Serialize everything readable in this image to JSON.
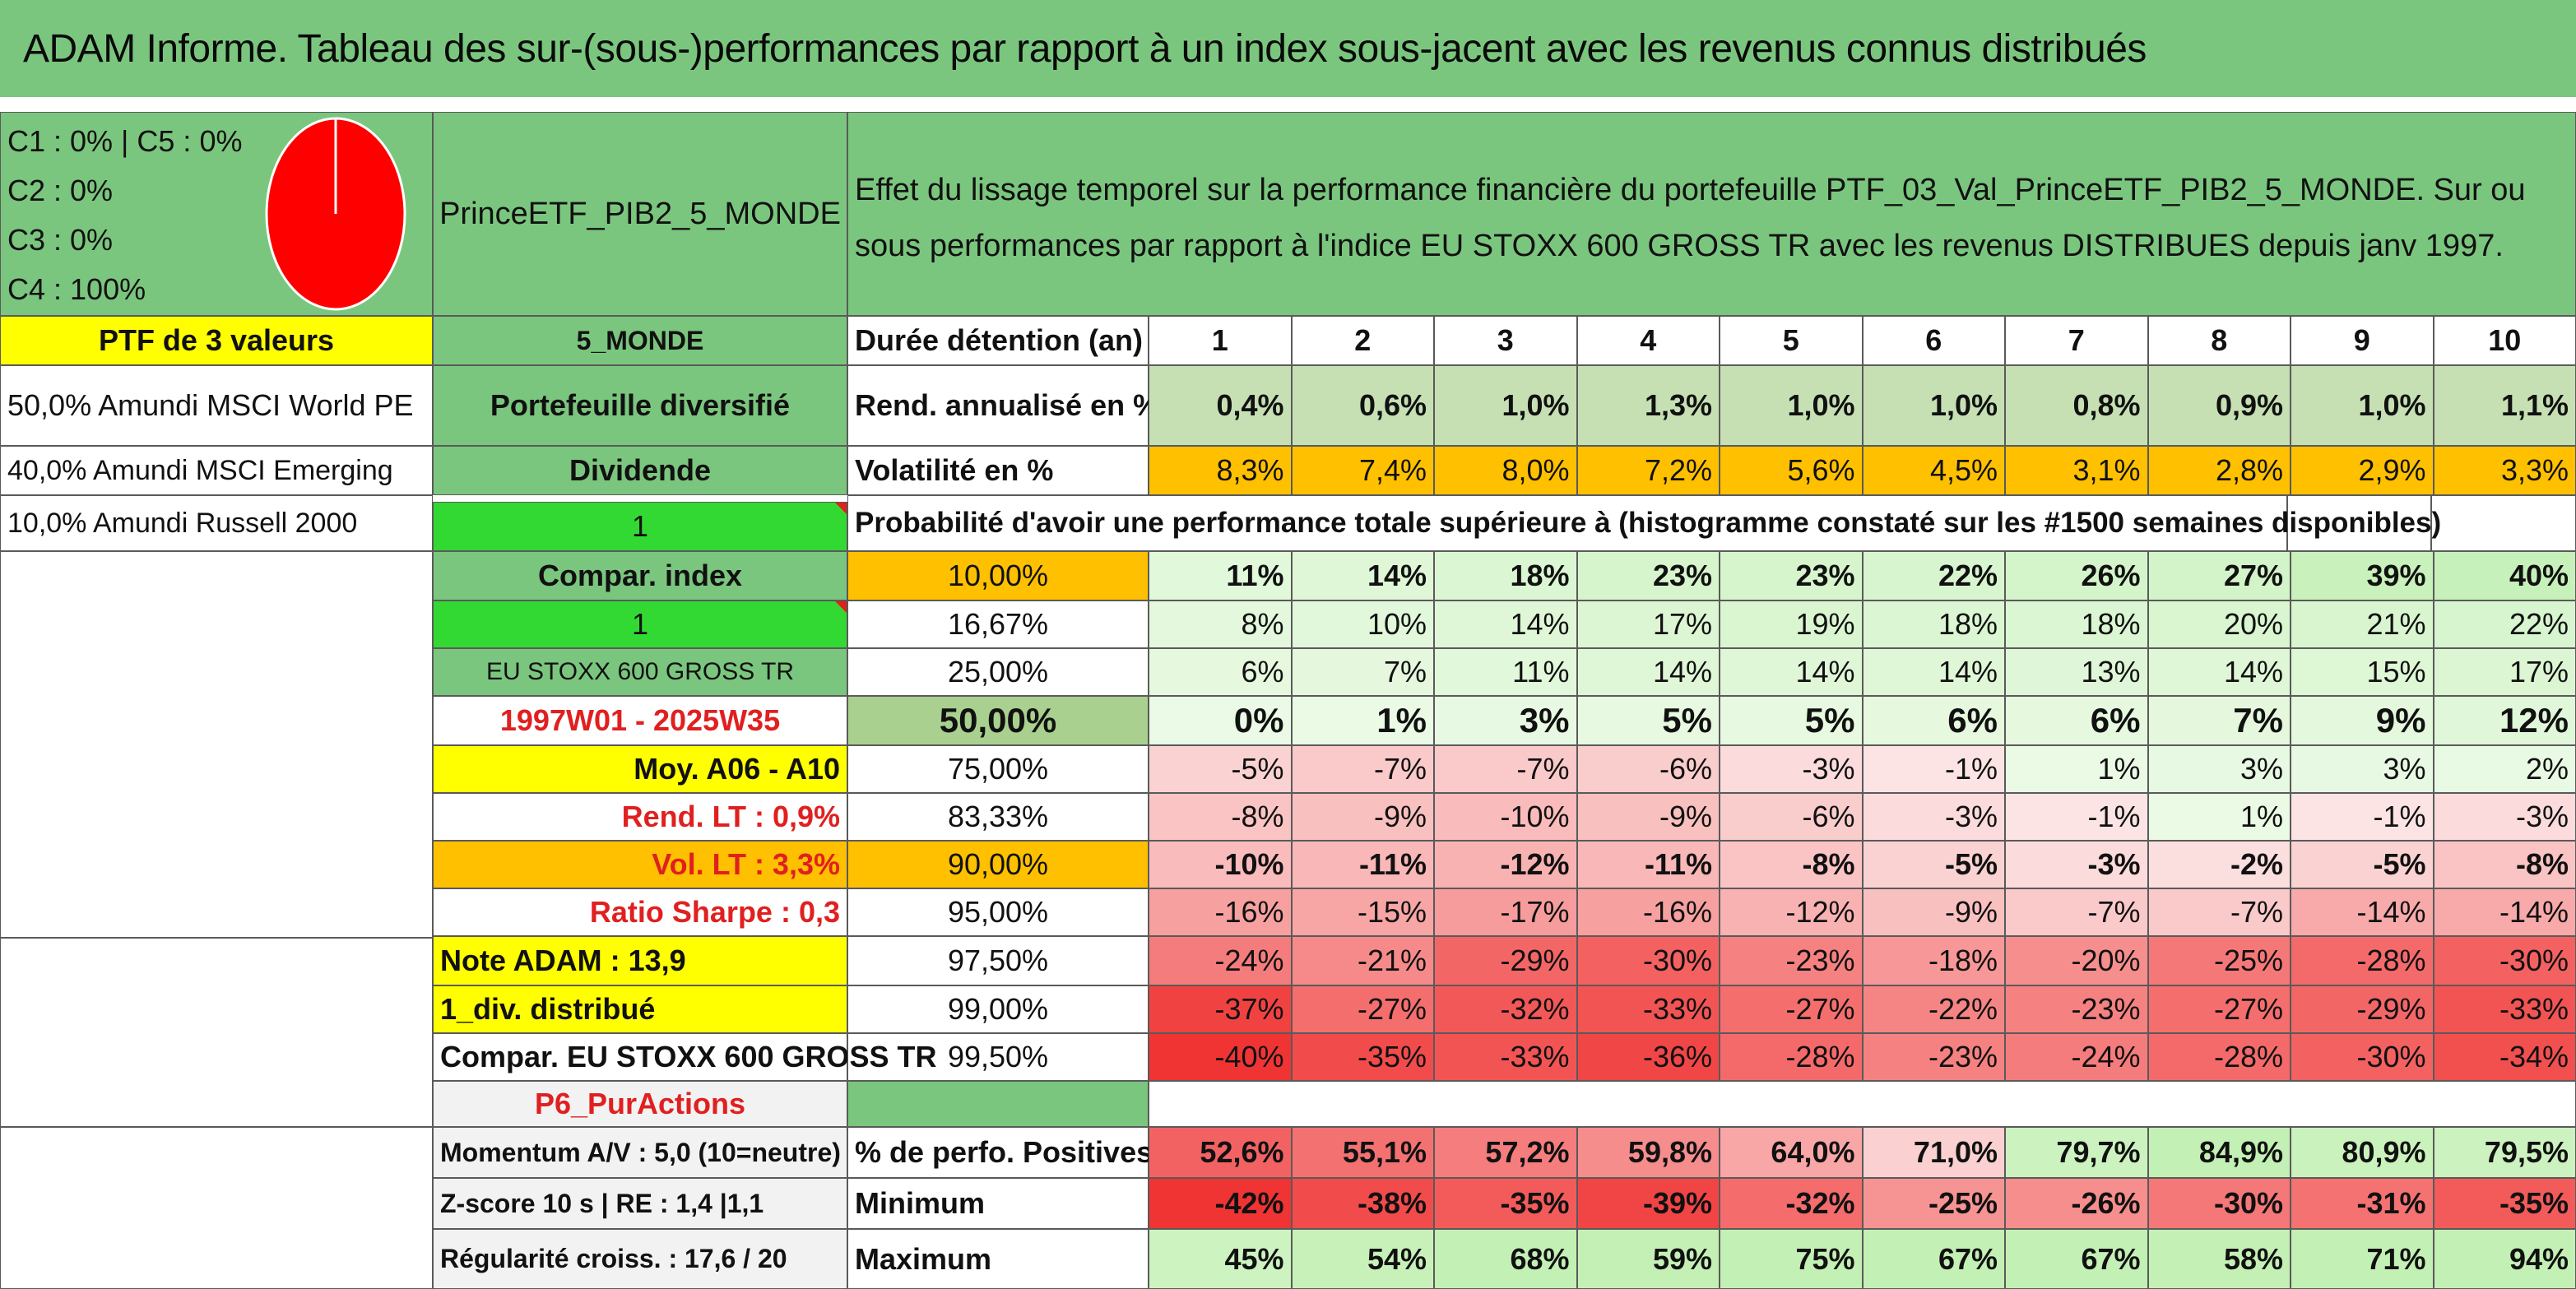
{
  "title": "ADAM Informe. Tableau des sur-(sous-)performances par rapport à un index sous-jacent avec les revenus connus distribués",
  "categories": {
    "c1": "C1 : 0% | C5 : 0%",
    "c2": "C2 : 0%",
    "c3": "C3 : 0%",
    "c4": "C4 : 100%"
  },
  "pie_chart": {
    "C1": 0,
    "C2": 0,
    "C3": 0,
    "C4": 100,
    "C5": 0,
    "color": "#ff0000"
  },
  "fund_name": "PrinceETF_PIB2_5_MONDE",
  "description": "Effet du lissage temporel sur la performance financière du portefeuille PTF_03_Val_PrinceETF_PIB2_5_MONDE. Sur ou sous performances par rapport à l'indice EU STOXX 600 GROSS TR avec les revenus DISTRIBUES depuis janv 1997.",
  "left_col": {
    "ptf_label": "PTF de 3 valeurs",
    "holdings": [
      "50,0% Amundi MSCI World PE",
      "40,0% Amundi MSCI Emerging",
      "10,0% Amundi Russell 2000"
    ],
    "note_adam": "Note ADAM : 13,9",
    "div": "1_div. distribué",
    "compar": "Compar. EU STOXX 600 GROSS TR"
  },
  "mid_col": {
    "zone": "5_MONDE",
    "type": "Portefeuille diversifié",
    "dividende": "Dividende",
    "val1": "1",
    "compar_index": "Compar. index",
    "val2": "1",
    "index_name": "EU STOXX 600 GROSS TR",
    "period": "1997W01 - 2025W35",
    "moy": "Moy. A06 - A10",
    "rend_lt": "Rend. LT : 0,9%",
    "vol_lt": "Vol. LT : 3,3%",
    "sharpe": "Ratio Sharpe : 0,3",
    "style": "P6_PurActions",
    "momentum": "Momentum A/V : 5,0 (10=neutre)",
    "zscore": "Z-score 10 s | RE : 1,4 |1,1",
    "regularite": "Régularité croiss. : 17,6 / 20"
  },
  "table": {
    "duree_label": "Durée détention (an)",
    "years": [
      "1",
      "2",
      "3",
      "4",
      "5",
      "6",
      "7",
      "8",
      "9",
      "10"
    ],
    "rend_label": "Rend. annualisé en %",
    "rend": [
      "0,4%",
      "0,6%",
      "1,0%",
      "1,3%",
      "1,0%",
      "1,0%",
      "0,8%",
      "0,9%",
      "1,0%",
      "1,1%"
    ],
    "vol_label": "Volatilité en %",
    "vol": [
      "8,3%",
      "7,4%",
      "8,0%",
      "7,2%",
      "5,6%",
      "4,5%",
      "3,1%",
      "2,8%",
      "2,9%",
      "3,3%"
    ],
    "proba_label": "Probabilité d'avoir une performance totale supérieure à (histogramme constaté sur les #1500 semaines disponibles)",
    "quantiles": [
      {
        "q": "10,00%",
        "v": [
          "11%",
          "14%",
          "18%",
          "23%",
          "23%",
          "22%",
          "26%",
          "27%",
          "39%",
          "40%"
        ]
      },
      {
        "q": "16,67%",
        "v": [
          "8%",
          "10%",
          "14%",
          "17%",
          "19%",
          "18%",
          "18%",
          "20%",
          "21%",
          "22%"
        ]
      },
      {
        "q": "25,00%",
        "v": [
          "6%",
          "7%",
          "11%",
          "14%",
          "14%",
          "14%",
          "13%",
          "14%",
          "15%",
          "17%"
        ]
      },
      {
        "q": "50,00%",
        "v": [
          "0%",
          "1%",
          "3%",
          "5%",
          "5%",
          "6%",
          "6%",
          "7%",
          "9%",
          "12%"
        ]
      },
      {
        "q": "75,00%",
        "v": [
          "-5%",
          "-7%",
          "-7%",
          "-6%",
          "-3%",
          "-1%",
          "1%",
          "3%",
          "3%",
          "2%"
        ]
      },
      {
        "q": "83,33%",
        "v": [
          "-8%",
          "-9%",
          "-10%",
          "-9%",
          "-6%",
          "-3%",
          "-1%",
          "1%",
          "-1%",
          "-3%"
        ]
      },
      {
        "q": "90,00%",
        "v": [
          "-10%",
          "-11%",
          "-12%",
          "-11%",
          "-8%",
          "-5%",
          "-3%",
          "-2%",
          "-5%",
          "-8%"
        ]
      },
      {
        "q": "95,00%",
        "v": [
          "-16%",
          "-15%",
          "-17%",
          "-16%",
          "-12%",
          "-9%",
          "-7%",
          "-7%",
          "-14%",
          "-14%"
        ]
      },
      {
        "q": "97,50%",
        "v": [
          "-24%",
          "-21%",
          "-29%",
          "-30%",
          "-23%",
          "-18%",
          "-20%",
          "-25%",
          "-28%",
          "-30%"
        ]
      },
      {
        "q": "99,00%",
        "v": [
          "-37%",
          "-27%",
          "-32%",
          "-33%",
          "-27%",
          "-22%",
          "-23%",
          "-27%",
          "-29%",
          "-33%"
        ]
      },
      {
        "q": "99,50%",
        "v": [
          "-40%",
          "-35%",
          "-33%",
          "-36%",
          "-28%",
          "-23%",
          "-24%",
          "-28%",
          "-30%",
          "-34%"
        ]
      }
    ],
    "pos_label": "% de perfo. Positives",
    "pos": [
      "52,6%",
      "55,1%",
      "57,2%",
      "59,8%",
      "64,0%",
      "71,0%",
      "79,7%",
      "84,9%",
      "80,9%",
      "79,5%"
    ],
    "min_label": "Minimum",
    "min": [
      "-42%",
      "-38%",
      "-35%",
      "-39%",
      "-32%",
      "-25%",
      "-26%",
      "-30%",
      "-31%",
      "-35%"
    ],
    "max_label": "Maximum",
    "max": [
      "45%",
      "54%",
      "68%",
      "59%",
      "75%",
      "67%",
      "67%",
      "58%",
      "71%",
      "94%"
    ]
  },
  "colors": {
    "header_green": "#7bc67e",
    "bright_green": "#33d933",
    "yellow": "#ffff00",
    "orange": "#ffc000",
    "red_text": "#e02020"
  }
}
